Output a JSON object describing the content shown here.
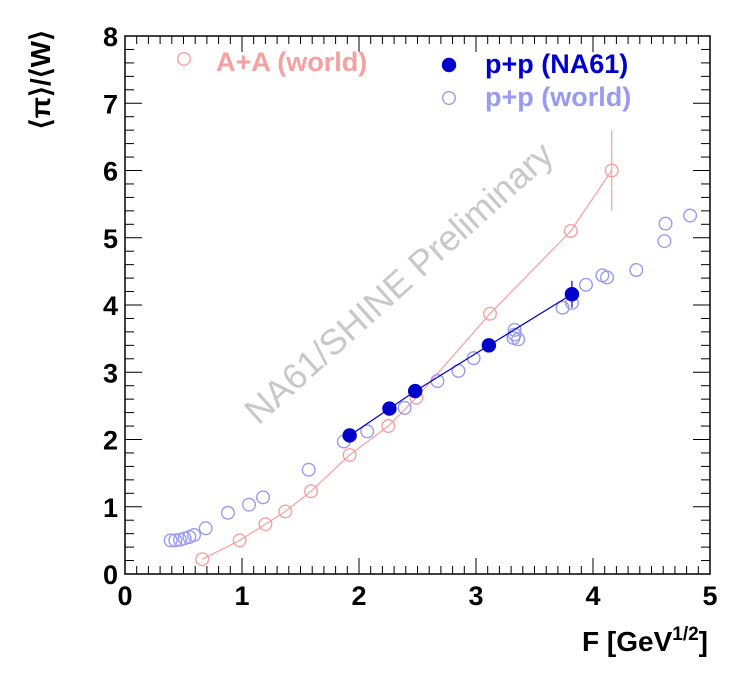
{
  "chart_data": {
    "type": "scatter",
    "xlabel": "F [GeV",
    "xlabel_sup": "1/2",
    "xlabel_close": "]",
    "ylabel": "⟨π⟩/⟨W⟩",
    "xlim": [
      0,
      5
    ],
    "ylim": [
      0,
      8
    ],
    "x_ticks": [
      "0",
      "1",
      "2",
      "3",
      "4",
      "5"
    ],
    "y_ticks": [
      "0",
      "1",
      "2",
      "3",
      "4",
      "5",
      "6",
      "7",
      "8"
    ],
    "grid": false,
    "legend_position": "top",
    "watermark": "NA61/SHINE Preliminary",
    "series": [
      {
        "name": "A+A (world)",
        "color": "#f7a0a0",
        "marker": "open-circle",
        "line": true,
        "points": [
          {
            "x": 0.66,
            "y": 0.22
          },
          {
            "x": 0.98,
            "y": 0.5
          },
          {
            "x": 1.2,
            "y": 0.74
          },
          {
            "x": 1.37,
            "y": 0.93
          },
          {
            "x": 1.59,
            "y": 1.23
          },
          {
            "x": 1.92,
            "y": 1.77
          },
          {
            "x": 2.25,
            "y": 2.2
          },
          {
            "x": 2.49,
            "y": 2.62
          },
          {
            "x": 3.12,
            "y": 3.87
          },
          {
            "x": 3.81,
            "y": 5.1
          },
          {
            "x": 4.16,
            "y": 6.0,
            "err": 0.6
          }
        ]
      },
      {
        "name": "p+p (NA61)",
        "color": "#0000cc",
        "marker": "filled-circle",
        "line": true,
        "points": [
          {
            "x": 1.92,
            "y": 2.06
          },
          {
            "x": 2.26,
            "y": 2.46
          },
          {
            "x": 2.48,
            "y": 2.72
          },
          {
            "x": 3.11,
            "y": 3.4
          },
          {
            "x": 3.82,
            "y": 4.16,
            "err": 0.2
          }
        ]
      },
      {
        "name": "p+p (world)",
        "color": "#9a9af0",
        "marker": "open-circle",
        "line": false,
        "points": [
          {
            "x": 0.39,
            "y": 0.5
          },
          {
            "x": 0.43,
            "y": 0.5
          },
          {
            "x": 0.47,
            "y": 0.51
          },
          {
            "x": 0.51,
            "y": 0.53
          },
          {
            "x": 0.55,
            "y": 0.55
          },
          {
            "x": 0.59,
            "y": 0.58
          },
          {
            "x": 0.69,
            "y": 0.68
          },
          {
            "x": 0.88,
            "y": 0.91
          },
          {
            "x": 1.06,
            "y": 1.03
          },
          {
            "x": 1.18,
            "y": 1.14
          },
          {
            "x": 1.57,
            "y": 1.55
          },
          {
            "x": 1.87,
            "y": 1.97
          },
          {
            "x": 2.07,
            "y": 2.12
          },
          {
            "x": 2.39,
            "y": 2.47
          },
          {
            "x": 2.67,
            "y": 2.87
          },
          {
            "x": 2.85,
            "y": 3.02
          },
          {
            "x": 2.98,
            "y": 3.21
          },
          {
            "x": 3.32,
            "y": 3.51
          },
          {
            "x": 3.33,
            "y": 3.56
          },
          {
            "x": 3.33,
            "y": 3.63
          },
          {
            "x": 3.36,
            "y": 3.49
          },
          {
            "x": 3.74,
            "y": 3.96
          },
          {
            "x": 3.82,
            "y": 4.03
          },
          {
            "x": 3.94,
            "y": 4.3
          },
          {
            "x": 4.08,
            "y": 4.44
          },
          {
            "x": 4.12,
            "y": 4.41
          },
          {
            "x": 4.37,
            "y": 4.52
          },
          {
            "x": 4.61,
            "y": 4.95
          },
          {
            "x": 4.62,
            "y": 5.21
          },
          {
            "x": 4.83,
            "y": 5.33
          }
        ]
      }
    ]
  }
}
